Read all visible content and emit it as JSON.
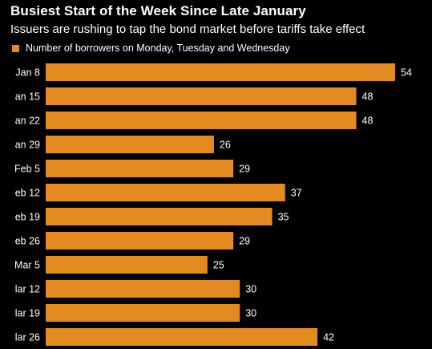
{
  "chart_data": {
    "type": "bar",
    "orientation": "horizontal",
    "title": "Busiest Start of the Week Since Late January",
    "subtitle": "Issuers are rushing to tap the bond market before tariffs take effect",
    "series": [
      {
        "name": "Number of borrowers on Monday, Tuesday and Wednesday",
        "color": "#e38b20",
        "values": [
          54,
          48,
          48,
          26,
          29,
          37,
          35,
          29,
          25,
          30,
          30,
          42
        ]
      }
    ],
    "categories": [
      "Jan 8",
      "an 15",
      "an 22",
      "an 29",
      "Feb 5",
      "eb 12",
      "eb 19",
      "eb 26",
      "Mar 5",
      "lar 12",
      "lar 19",
      "lar 26"
    ],
    "xlim": [
      0,
      54
    ],
    "grid": false,
    "legend_position": "top-left",
    "data_labels": true
  }
}
